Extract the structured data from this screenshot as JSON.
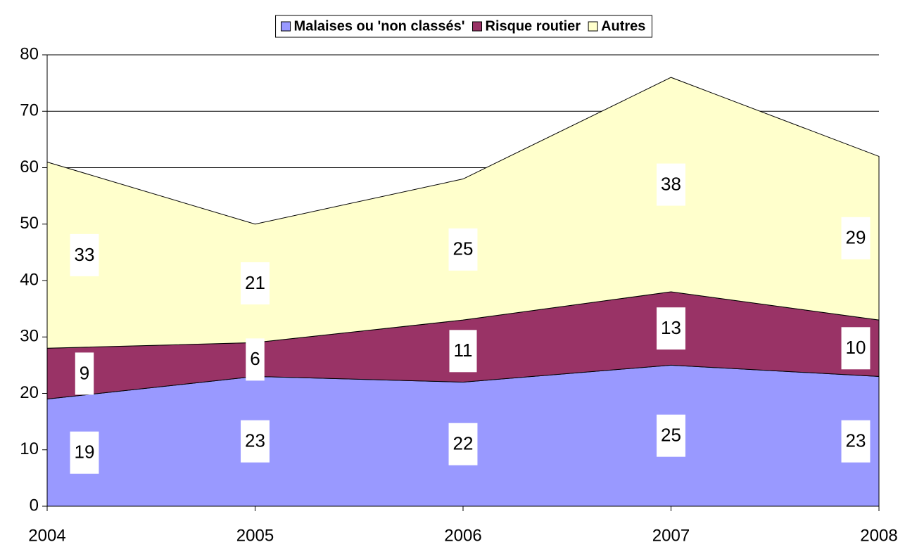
{
  "chart_data": {
    "type": "area",
    "stacked": true,
    "categories": [
      "2004",
      "2005",
      "2006",
      "2007",
      "2008"
    ],
    "series": [
      {
        "name": "Malaises ou 'non classés'",
        "color": "#9999ff",
        "values": [
          19,
          23,
          22,
          25,
          23
        ]
      },
      {
        "name": "Risque routier",
        "color": "#993366",
        "values": [
          9,
          6,
          11,
          13,
          10
        ]
      },
      {
        "name": "Autres",
        "color": "#ffffcc",
        "values": [
          33,
          21,
          25,
          38,
          29
        ]
      }
    ],
    "ylim": [
      0,
      80
    ],
    "yticks": [
      0,
      10,
      20,
      30,
      40,
      50,
      60,
      70,
      80
    ],
    "grid": true,
    "legend": "top"
  }
}
